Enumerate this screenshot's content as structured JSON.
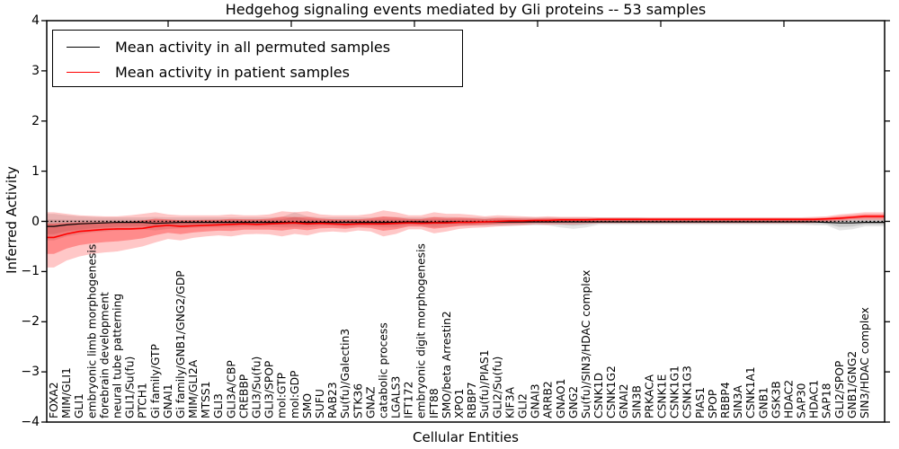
{
  "chart_data": {
    "type": "line",
    "title": "Hedgehog signaling events mediated by Gli proteins -- 53 samples",
    "xlabel": "Cellular Entities",
    "ylabel": "Inferred Activity",
    "ylim": [
      -4,
      4
    ],
    "yticks": [
      4,
      3,
      2,
      1,
      0,
      -1,
      -2,
      -3,
      -4
    ],
    "zero_line_dashed": true,
    "legend_position": "upper left",
    "categories": [
      "FOXA2",
      "MIM/GLI1",
      "GLI1",
      "embryonic limb morphogenesis",
      "forebrain development",
      "neural tube patterning",
      "GLI1/Su(fu)",
      "PTCH1",
      "Gi family/GTP",
      "GNAI1",
      "Gi family/GNB1/GNG2/GDP",
      "MIM/GLI2A",
      "MTSS1",
      "GLI3",
      "GLI3A/CBP",
      "CREBBP",
      "GLI3/Su(fu)",
      "GLI3/SPOP",
      "mol:GTP",
      "mol:GDP",
      "SMO",
      "SUFU",
      "RAB23",
      "Su(fu)/Galectin3",
      "STK36",
      "GNAZ",
      "catabolic process",
      "LGALS3",
      "IFT172",
      "embryonic digit morphogenesis",
      "IFT88",
      "SMO/beta Arrestin2",
      "XPO1",
      "RBBP7",
      "Su(fu)/PIAS1",
      "GLI2/Su(fu)",
      "KIF3A",
      "GLI2",
      "GNAI3",
      "ARRB2",
      "GNAO1",
      "GNG2",
      "Su(fu)/SIN3/HDAC complex",
      "CSNK1D",
      "CSNK1G2",
      "GNAI2",
      "SIN3B",
      "PRKACA",
      "CSNK1E",
      "CSNK1G1",
      "CSNK1G3",
      "PIAS1",
      "SPOP",
      "RBBP4",
      "SIN3A",
      "CSNK1A1",
      "GNB1",
      "GSK3B",
      "HDAC2",
      "SAP30",
      "HDAC1",
      "SAP18",
      "GLI2/SPOP",
      "GNB1/GNG2",
      "SIN3/HDAC complex"
    ],
    "series": [
      {
        "name": "Mean activity in all permuted samples",
        "color": "#000000",
        "values": [
          -0.1,
          -0.07,
          -0.05,
          -0.04,
          -0.03,
          -0.02,
          -0.02,
          -0.02,
          -0.04,
          -0.03,
          -0.02,
          -0.02,
          -0.02,
          -0.02,
          -0.02,
          -0.02,
          -0.02,
          -0.02,
          -0.02,
          -0.02,
          -0.02,
          -0.02,
          -0.02,
          -0.02,
          -0.02,
          -0.02,
          -0.02,
          -0.02,
          -0.01,
          -0.01,
          -0.02,
          -0.01,
          -0.01,
          -0.01,
          -0.01,
          -0.01,
          -0.01,
          -0.01,
          -0.01,
          -0.01,
          -0.01,
          -0.01,
          -0.01,
          -0.01,
          -0.01,
          -0.01,
          -0.01,
          -0.01,
          -0.01,
          -0.01,
          -0.01,
          -0.01,
          -0.01,
          -0.01,
          -0.01,
          -0.01,
          -0.01,
          -0.01,
          -0.01,
          -0.01,
          -0.01,
          -0.02,
          -0.03,
          -0.03,
          -0.02
        ],
        "band_hi": [
          0.15,
          0.12,
          0.1,
          0.09,
          0.08,
          0.08,
          0.08,
          0.08,
          0.09,
          0.08,
          0.08,
          0.08,
          0.08,
          0.08,
          0.08,
          0.08,
          0.08,
          0.08,
          0.09,
          0.18,
          0.1,
          0.08,
          0.08,
          0.08,
          0.08,
          0.08,
          0.09,
          0.09,
          0.08,
          0.08,
          0.09,
          0.09,
          0.08,
          0.08,
          0.08,
          0.08,
          0.08,
          0.08,
          0.08,
          0.08,
          0.08,
          0.08,
          0.08,
          0.08,
          0.08,
          0.08,
          0.08,
          0.07,
          0.07,
          0.07,
          0.07,
          0.07,
          0.07,
          0.07,
          0.07,
          0.07,
          0.07,
          0.07,
          0.07,
          0.07,
          0.07,
          0.07,
          0.08,
          0.08,
          0.08
        ],
        "band_lo": [
          -0.38,
          -0.3,
          -0.26,
          -0.22,
          -0.2,
          -0.18,
          -0.17,
          -0.16,
          -0.18,
          -0.15,
          -0.14,
          -0.13,
          -0.12,
          -0.12,
          -0.12,
          -0.11,
          -0.11,
          -0.11,
          -0.12,
          -0.12,
          -0.12,
          -0.1,
          -0.1,
          -0.12,
          -0.1,
          -0.1,
          -0.12,
          -0.12,
          -0.09,
          -0.09,
          -0.12,
          -0.1,
          -0.09,
          -0.09,
          -0.09,
          -0.09,
          -0.09,
          -0.08,
          -0.08,
          -0.08,
          -0.12,
          -0.15,
          -0.12,
          -0.07,
          -0.07,
          -0.07,
          -0.07,
          -0.07,
          -0.07,
          -0.07,
          -0.07,
          -0.07,
          -0.07,
          -0.07,
          -0.07,
          -0.07,
          -0.07,
          -0.07,
          -0.07,
          -0.07,
          -0.08,
          -0.08,
          -0.18,
          -0.16,
          -0.1
        ]
      },
      {
        "name": "Mean activity in patient samples",
        "color": "#ff0000",
        "values": [
          -0.32,
          -0.25,
          -0.2,
          -0.18,
          -0.16,
          -0.15,
          -0.15,
          -0.14,
          -0.1,
          -0.08,
          -0.1,
          -0.09,
          -0.08,
          -0.07,
          -0.06,
          -0.05,
          -0.06,
          -0.05,
          -0.04,
          -0.03,
          -0.05,
          -0.04,
          -0.05,
          -0.06,
          -0.05,
          -0.05,
          -0.05,
          -0.04,
          -0.03,
          -0.04,
          -0.03,
          -0.03,
          -0.02,
          -0.02,
          -0.01,
          0.0,
          0.01,
          0.01,
          0.02,
          0.02,
          0.03,
          0.03,
          0.03,
          0.04,
          0.04,
          0.04,
          0.04,
          0.04,
          0.04,
          0.04,
          0.04,
          0.04,
          0.04,
          0.04,
          0.04,
          0.04,
          0.04,
          0.04,
          0.04,
          0.04,
          0.04,
          0.05,
          0.06,
          0.08,
          0.1
        ],
        "band_hi": [
          0.18,
          0.15,
          0.12,
          0.11,
          0.1,
          0.1,
          0.12,
          0.15,
          0.18,
          0.14,
          0.12,
          0.12,
          0.12,
          0.12,
          0.14,
          0.12,
          0.12,
          0.14,
          0.2,
          0.18,
          0.2,
          0.14,
          0.12,
          0.12,
          0.12,
          0.15,
          0.22,
          0.18,
          0.12,
          0.12,
          0.18,
          0.15,
          0.15,
          0.13,
          0.1,
          0.12,
          0.11,
          0.1,
          0.09,
          0.1,
          0.09,
          0.09,
          0.09,
          0.08,
          0.08,
          0.08,
          0.08,
          0.08,
          0.08,
          0.08,
          0.08,
          0.08,
          0.08,
          0.08,
          0.08,
          0.08,
          0.08,
          0.08,
          0.08,
          0.08,
          0.09,
          0.1,
          0.14,
          0.16,
          0.18
        ],
        "band_lo": [
          -0.92,
          -0.78,
          -0.7,
          -0.65,
          -0.62,
          -0.6,
          -0.55,
          -0.5,
          -0.42,
          -0.35,
          -0.38,
          -0.33,
          -0.3,
          -0.28,
          -0.3,
          -0.26,
          -0.25,
          -0.26,
          -0.3,
          -0.25,
          -0.28,
          -0.22,
          -0.2,
          -0.22,
          -0.18,
          -0.2,
          -0.3,
          -0.25,
          -0.16,
          -0.16,
          -0.24,
          -0.2,
          -0.15,
          -0.13,
          -0.12,
          -0.1,
          -0.09,
          -0.08,
          -0.06,
          -0.07,
          -0.06,
          -0.06,
          -0.05,
          -0.04,
          -0.04,
          -0.04,
          -0.04,
          -0.04,
          -0.04,
          -0.04,
          -0.04,
          -0.04,
          -0.04,
          -0.04,
          -0.04,
          -0.04,
          -0.04,
          -0.04,
          -0.04,
          -0.04,
          -0.03,
          -0.02,
          0.0,
          0.02,
          0.02
        ]
      }
    ]
  }
}
